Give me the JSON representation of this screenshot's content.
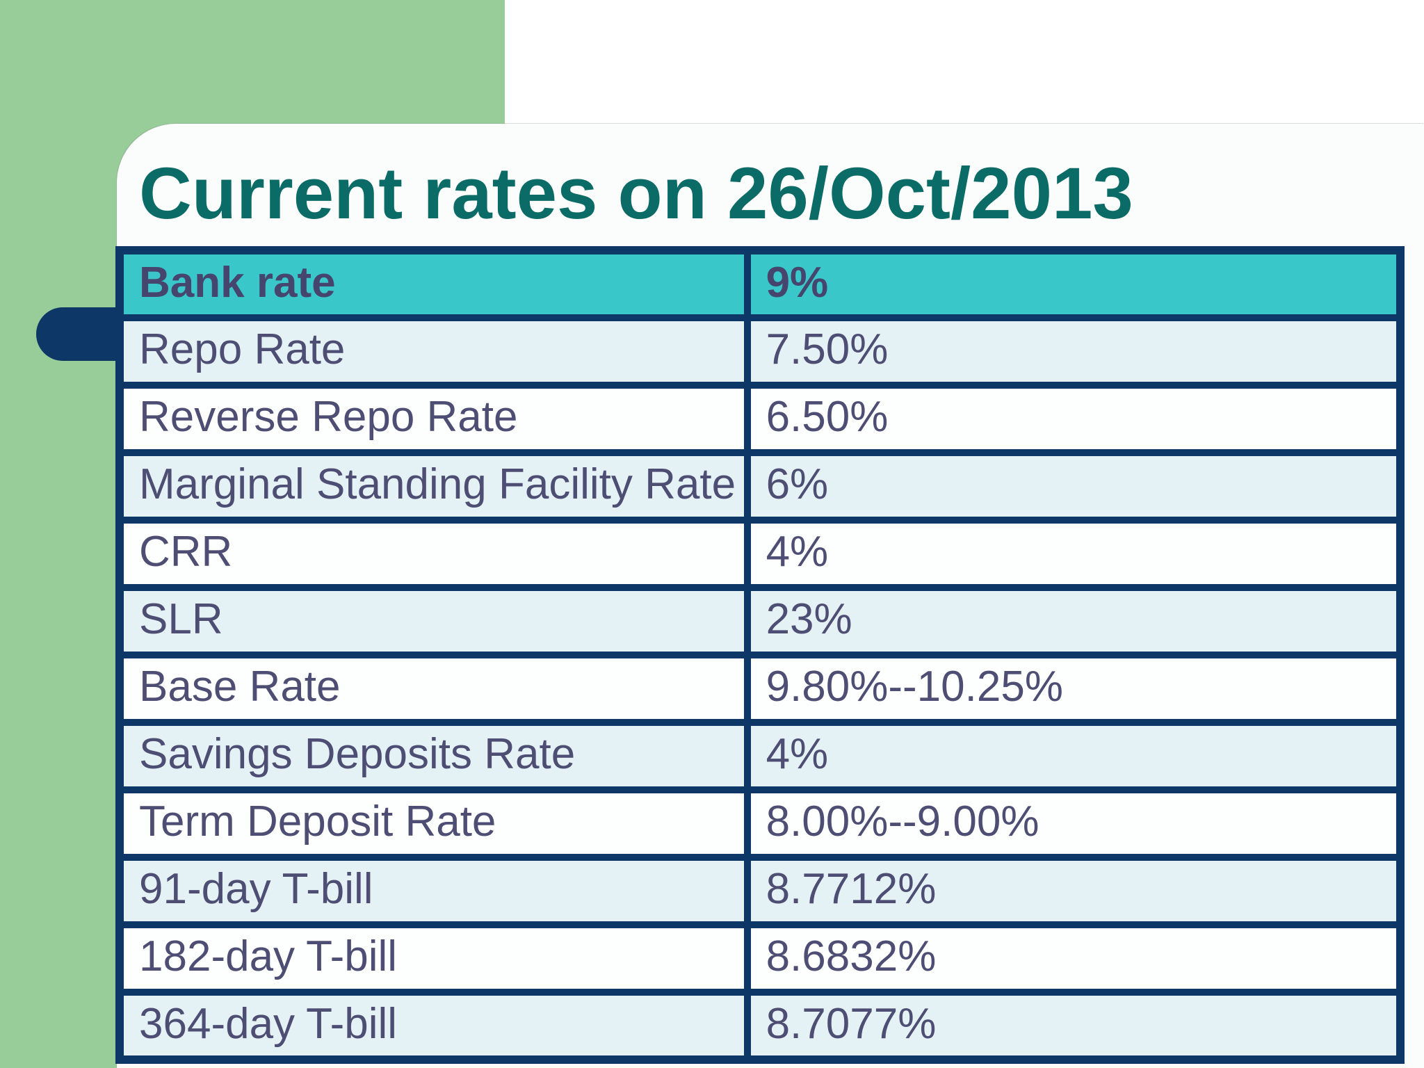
{
  "slide": {
    "title": "Current rates on 26/Oct/2013",
    "table": {
      "header": {
        "label": "Bank rate",
        "value": "9%"
      },
      "rows": [
        {
          "label": "Repo Rate",
          "value": "7.50%"
        },
        {
          "label": "Reverse Repo Rate",
          "value": "6.50%"
        },
        {
          "label": "Marginal Standing Facility Rate",
          "value": "6%"
        },
        {
          "label": "CRR",
          "value": "4%"
        },
        {
          "label": "SLR",
          "value": "23%"
        },
        {
          "label": "Base Rate",
          "value": "9.80%--10.25%"
        },
        {
          "label": "Savings Deposits Rate",
          "value": "4%"
        },
        {
          "label": "Term Deposit Rate",
          "value": "8.00%--9.00%"
        },
        {
          "label": "91-day T-bill",
          "value": "8.7712%"
        },
        {
          "label": "182-day T-bill",
          "value": "8.6832%"
        },
        {
          "label": "364-day T-bill",
          "value": "8.7077%"
        }
      ]
    },
    "colors": {
      "background_green": "#98CC98",
      "navy_border": "#0D3766",
      "header_teal": "#39C7CA",
      "row_light_blue": "#E5F2F5",
      "row_white": "#FDFFFE",
      "title_teal": "#0B6B66",
      "text_slate": "#4E4E74"
    }
  }
}
